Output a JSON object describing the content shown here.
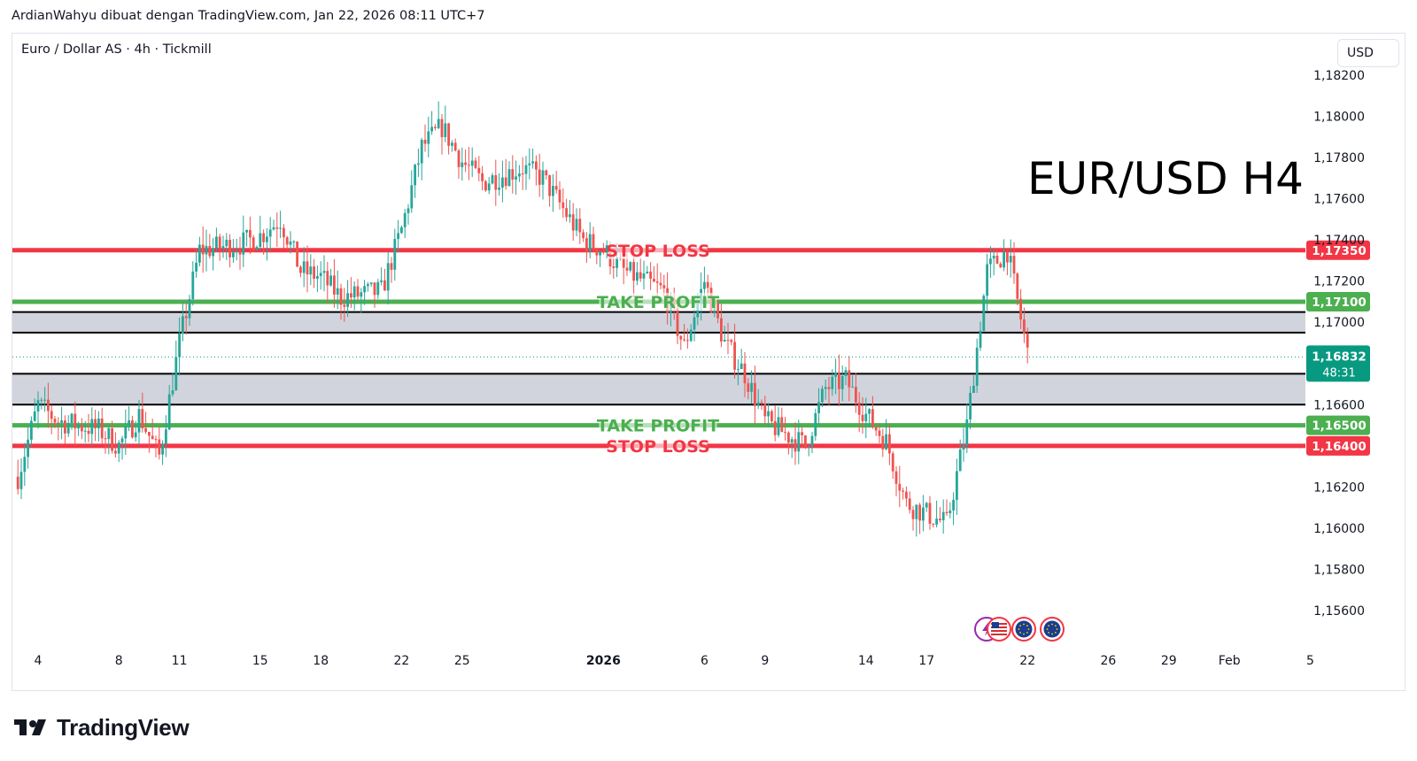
{
  "header": {
    "attribution": "ArdianWahyu dibuat dengan TradingView.com, Jan 22, 2026 08:11 UTC+7"
  },
  "chart_header": {
    "symbol": "Euro / Dollar AS · 4h · Tickmill",
    "currency": "USD"
  },
  "footer": {
    "brand": "TradingView"
  },
  "colors": {
    "up": "#26a69a",
    "down": "#ef5350",
    "stop_loss": "#f23645",
    "take_profit": "#4caf50",
    "zone_fill": "#d1d4dc",
    "zone_border": "#000000",
    "last_price_badge": "#089981"
  },
  "chart_data": {
    "type": "candlestick",
    "title": "EUR/USD H4",
    "timeframe": "4h",
    "ylim": [
      1.1545,
      1.1832
    ],
    "yticks": [
      "1,18200",
      "1,18000",
      "1,17800",
      "1,17600",
      "1,17400",
      "1,17200",
      "1,17000",
      "1,16600",
      "1,16200",
      "1,16000",
      "1,15800",
      "1,15600"
    ],
    "ytick_values": [
      1.182,
      1.18,
      1.178,
      1.176,
      1.174,
      1.172,
      1.17,
      1.166,
      1.162,
      1.16,
      1.158,
      1.156
    ],
    "xticks": [
      {
        "label": "4",
        "date": "2025-12-04",
        "bold": false
      },
      {
        "label": "8",
        "date": "2025-12-08",
        "bold": false
      },
      {
        "label": "11",
        "date": "2025-12-11",
        "bold": false
      },
      {
        "label": "15",
        "date": "2025-12-15",
        "bold": false
      },
      {
        "label": "18",
        "date": "2025-12-18",
        "bold": false
      },
      {
        "label": "22",
        "date": "2025-12-22",
        "bold": false
      },
      {
        "label": "25",
        "date": "2025-12-25",
        "bold": false
      },
      {
        "label": "2026",
        "date": "2026-01-01",
        "bold": true
      },
      {
        "label": "6",
        "date": "2026-01-06",
        "bold": false
      },
      {
        "label": "9",
        "date": "2026-01-09",
        "bold": false
      },
      {
        "label": "14",
        "date": "2026-01-14",
        "bold": false
      },
      {
        "label": "17",
        "date": "2026-01-17",
        "bold": false
      },
      {
        "label": "22",
        "date": "2026-01-22",
        "bold": false
      },
      {
        "label": "26",
        "date": "2026-01-26",
        "bold": false
      },
      {
        "label": "29",
        "date": "2026-01-29",
        "bold": false
      },
      {
        "label": "Feb",
        "date": "2026-02-01",
        "bold": false
      },
      {
        "label": "5",
        "date": "2026-02-05",
        "bold": false
      }
    ],
    "closes": [
      [
        "2025-12-03",
        1.1625
      ],
      [
        "2025-12-04",
        1.166
      ],
      [
        "2025-12-05",
        1.1652
      ],
      [
        "2025-12-07",
        1.1648
      ],
      [
        "2025-12-08",
        1.164
      ],
      [
        "2025-12-09",
        1.1655
      ],
      [
        "2025-12-10",
        1.1635
      ],
      [
        "2025-12-11",
        1.169
      ],
      [
        "2025-12-12",
        1.1735
      ],
      [
        "2025-12-14",
        1.1738
      ],
      [
        "2025-12-15",
        1.1742
      ],
      [
        "2025-12-16",
        1.175
      ],
      [
        "2025-12-17",
        1.1725
      ],
      [
        "2025-12-18",
        1.1722
      ],
      [
        "2025-12-19",
        1.1712
      ],
      [
        "2025-12-21",
        1.1715
      ],
      [
        "2025-12-22",
        1.1745
      ],
      [
        "2025-12-23",
        1.1785
      ],
      [
        "2025-12-24",
        1.1795
      ],
      [
        "2025-12-25",
        1.1778
      ],
      [
        "2025-12-26",
        1.1768
      ],
      [
        "2025-12-28",
        1.1775
      ],
      [
        "2025-12-29",
        1.177
      ],
      [
        "2025-12-30",
        1.1755
      ],
      [
        "2025-12-31",
        1.174
      ],
      [
        "2026-01-01",
        1.1735
      ],
      [
        "2026-01-02",
        1.1725
      ],
      [
        "2026-01-04",
        1.1715
      ],
      [
        "2026-01-05",
        1.1688
      ],
      [
        "2026-01-06",
        1.172
      ],
      [
        "2026-01-07",
        1.169
      ],
      [
        "2026-01-08",
        1.1675
      ],
      [
        "2026-01-09",
        1.1652
      ],
      [
        "2026-01-11",
        1.164
      ],
      [
        "2026-01-12",
        1.1668
      ],
      [
        "2026-01-13",
        1.1672
      ],
      [
        "2026-01-14",
        1.1655
      ],
      [
        "2026-01-15",
        1.1642
      ],
      [
        "2026-01-16",
        1.1612
      ],
      [
        "2026-01-18",
        1.1602
      ],
      [
        "2026-01-19",
        1.165
      ],
      [
        "2026-01-20",
        1.1725
      ],
      [
        "2026-01-21",
        1.1735
      ],
      [
        "2026-01-22",
        1.1685
      ]
    ],
    "last_price": {
      "value": "1,16832",
      "countdown": "48:31"
    },
    "zones": [
      {
        "name": "upper-zone",
        "from": 1.1695,
        "to": 1.1705
      },
      {
        "name": "lower-zone",
        "from": 1.166,
        "to": 1.1675
      }
    ],
    "levels": [
      {
        "name": "stop-loss-upper",
        "value": 1.1735,
        "label": "STOP LOSS",
        "price_label": "1,17350",
        "kind": "stop_loss"
      },
      {
        "name": "take-profit-upper",
        "value": 1.171,
        "label": "TAKE PROFIT",
        "price_label": "1,17100",
        "kind": "take_profit"
      },
      {
        "name": "take-profit-lower",
        "value": 1.165,
        "label": "TAKE PROFIT",
        "price_label": "1,16500",
        "kind": "take_profit"
      },
      {
        "name": "stop-loss-lower",
        "value": 1.164,
        "label": "STOP LOSS",
        "price_label": "1,16400",
        "kind": "stop_loss"
      }
    ],
    "event_icons": [
      "lightning-icon",
      "us-flag-icon",
      "eu-flag-icon",
      "eu-flag-icon"
    ]
  }
}
